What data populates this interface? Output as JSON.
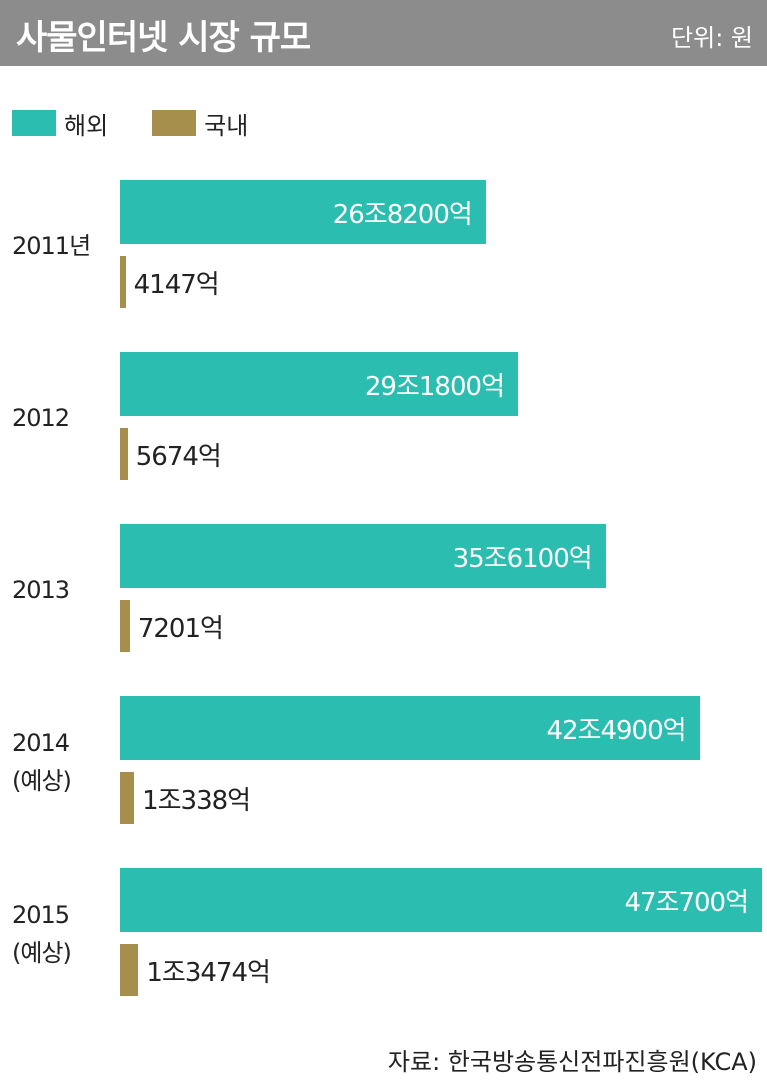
{
  "chart_data": {
    "type": "bar",
    "orientation": "horizontal",
    "title": "사물인터넷 시장 규모",
    "unit_note": "단위: 원",
    "source": "자료: 한국방송통신전파진흥원(KCA)",
    "categories": [
      "2011년",
      "2012",
      "2013",
      "2014\n(예상)",
      "2015\n(예상)"
    ],
    "series": [
      {
        "name": "해외",
        "color": "#2bbdb0",
        "values": [
          268200,
          291800,
          356100,
          424900,
          470700
        ],
        "value_labels": [
          "26조8200억",
          "29조1800억",
          "35조6100억",
          "42조4900억",
          "47조700억"
        ]
      },
      {
        "name": "국내",
        "color": "#a68f4c",
        "values": [
          4147,
          5674,
          7201,
          10338,
          13474
        ],
        "value_labels": [
          "4147억",
          "5674억",
          "7201억",
          "1조338억",
          "1조3474억"
        ]
      }
    ],
    "legend": "top-left"
  }
}
